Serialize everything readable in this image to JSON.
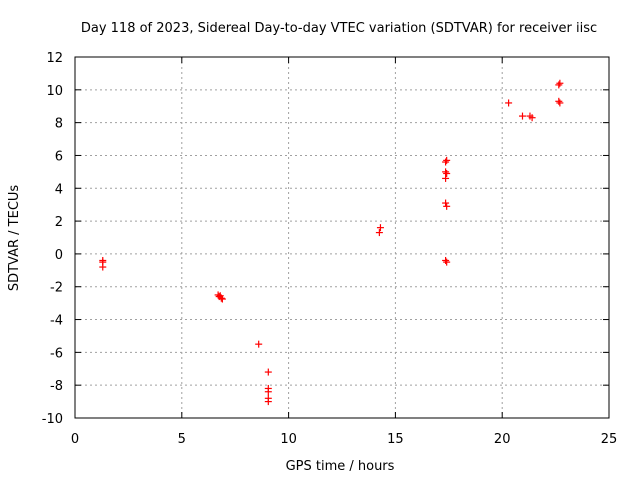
{
  "chart_data": {
    "type": "scatter",
    "title": "Day 118 of 2023, Sidereal Day-to-day VTEC variation (SDTVAR) for receiver iisc",
    "xlabel": "GPS time / hours",
    "ylabel": "SDTVAR / TECUs",
    "xlim": [
      0,
      25
    ],
    "ylim": [
      -10,
      12
    ],
    "xticks": [
      0,
      5,
      10,
      15,
      20,
      25
    ],
    "yticks": [
      -10,
      -8,
      -6,
      -4,
      -2,
      0,
      2,
      4,
      6,
      8,
      10,
      12
    ],
    "grid": true,
    "marker": "plus",
    "color": "#ff0000",
    "series": [
      {
        "name": "SDTVAR",
        "points": [
          [
            1.3,
            -0.4
          ],
          [
            1.3,
            -0.5
          ],
          [
            1.3,
            -0.8
          ],
          [
            6.7,
            -2.5
          ],
          [
            6.75,
            -2.6
          ],
          [
            6.8,
            -2.55
          ],
          [
            6.85,
            -2.7
          ],
          [
            6.9,
            -2.75
          ],
          [
            8.6,
            -5.5
          ],
          [
            9.05,
            -7.2
          ],
          [
            9.05,
            -8.2
          ],
          [
            9.05,
            -8.4
          ],
          [
            9.05,
            -8.8
          ],
          [
            9.05,
            -9.0
          ],
          [
            14.25,
            1.3
          ],
          [
            14.3,
            1.6
          ],
          [
            17.35,
            5.6
          ],
          [
            17.4,
            5.7
          ],
          [
            17.35,
            5.0
          ],
          [
            17.4,
            4.9
          ],
          [
            17.35,
            4.6
          ],
          [
            17.35,
            3.1
          ],
          [
            17.4,
            2.9
          ],
          [
            17.35,
            -0.4
          ],
          [
            17.4,
            -0.5
          ],
          [
            20.3,
            9.2
          ],
          [
            20.95,
            8.4
          ],
          [
            21.3,
            8.4
          ],
          [
            21.4,
            8.3
          ],
          [
            22.65,
            10.3
          ],
          [
            22.7,
            10.4
          ],
          [
            22.65,
            9.3
          ],
          [
            22.7,
            9.2
          ]
        ]
      }
    ]
  }
}
